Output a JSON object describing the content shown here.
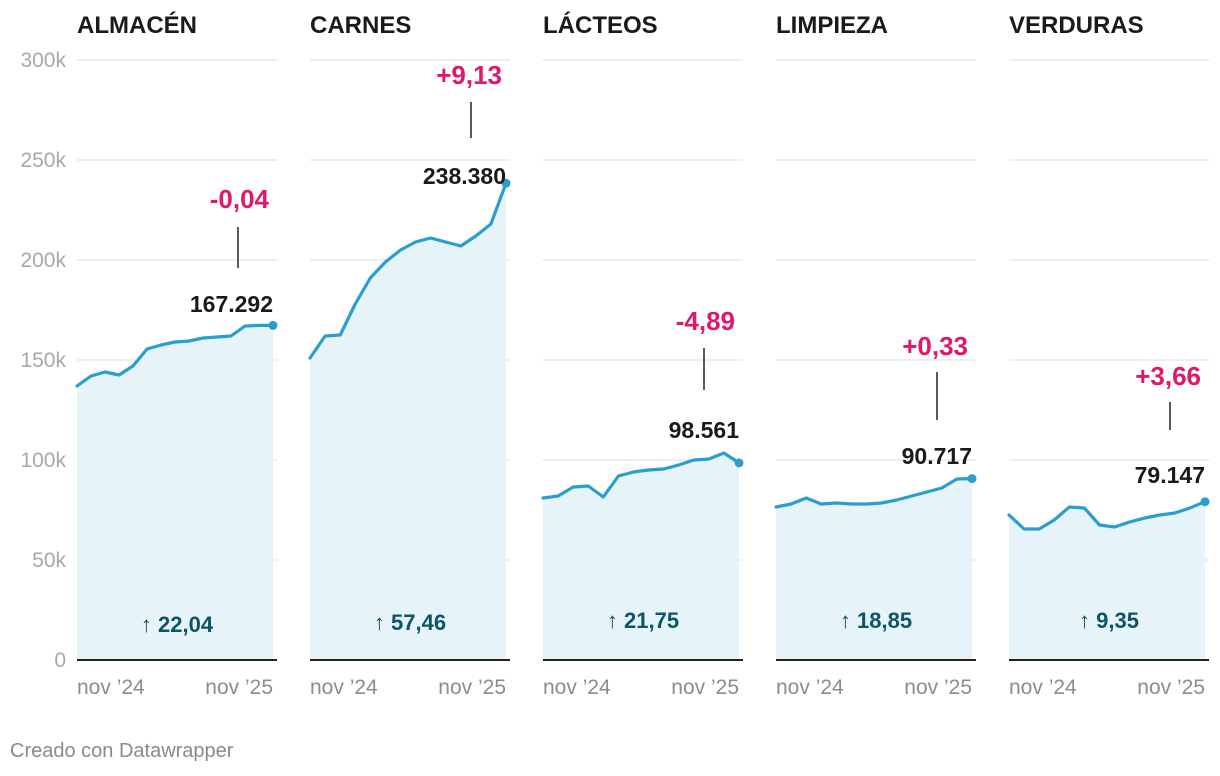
{
  "colors": {
    "line": "#2a9fcf",
    "area": "#e6f3f9",
    "grid": "#dddddd",
    "axis": "#222222",
    "change": "#e0176b",
    "growth": "#0d5467"
  },
  "footer": "Creado con Datawrapper",
  "chart_data": {
    "type": "area",
    "ylim": [
      0,
      300000
    ],
    "yticks": [
      {
        "value": 0,
        "label": "0"
      },
      {
        "value": 50000,
        "label": "50k"
      },
      {
        "value": 100000,
        "label": "100k"
      },
      {
        "value": 150000,
        "label": "150k"
      },
      {
        "value": 200000,
        "label": "200k"
      },
      {
        "value": 250000,
        "label": "250k"
      },
      {
        "value": 300000,
        "label": "300k"
      }
    ],
    "xticks": [
      "nov ’24",
      "nov ’25"
    ],
    "panels": [
      {
        "title": "ALMACÉN",
        "values": [
          137000,
          142000,
          144000,
          142500,
          147000,
          155500,
          157500,
          159000,
          159500,
          161000,
          161500,
          162000,
          167000,
          167300,
          167292
        ],
        "last_label": "167.292",
        "change": "-0,04",
        "growth": "↑ 22,04"
      },
      {
        "title": "CARNES",
        "values": [
          151000,
          162000,
          162500,
          178000,
          191000,
          199000,
          205000,
          209000,
          211000,
          209000,
          207000,
          212000,
          218000,
          238380
        ],
        "last_label": "238.380",
        "change": "+9,13",
        "growth": "↑ 57,46"
      },
      {
        "title": "LÁCTEOS",
        "values": [
          81000,
          82000,
          86500,
          87000,
          81500,
          92000,
          94000,
          95000,
          95500,
          97500,
          100000,
          100500,
          103500,
          98561
        ],
        "last_label": "98.561",
        "change": "-4,89",
        "growth": "↑ 21,75"
      },
      {
        "title": "LIMPIEZA",
        "values": [
          76500,
          78000,
          81000,
          78000,
          78500,
          78000,
          78000,
          78500,
          80000,
          82000,
          84000,
          86000,
          90500,
          90717
        ],
        "last_label": "90.717",
        "change": "+0,33",
        "growth": "↑ 18,85"
      },
      {
        "title": "VERDURAS",
        "values": [
          72500,
          65500,
          65500,
          70000,
          76500,
          76000,
          67500,
          66500,
          69000,
          71000,
          72500,
          73500,
          76000,
          79147
        ],
        "last_label": "79.147",
        "change": "+3,66",
        "growth": "↑ 9,35"
      }
    ]
  }
}
